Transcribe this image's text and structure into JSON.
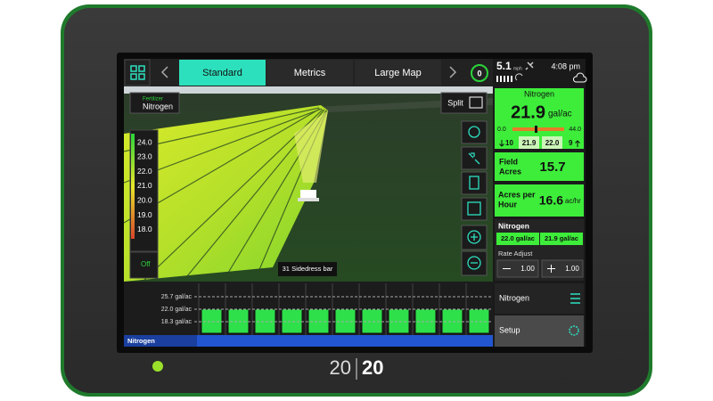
{
  "top_bar": {
    "tabs": [
      "Standard",
      "Metrics",
      "Large Map"
    ],
    "timer": "0",
    "speed": "5.1",
    "speed_unit": "mph",
    "time": "4:08 pm"
  },
  "map": {
    "product_button": {
      "label": "Fertilizer",
      "value": "Nitrogen"
    },
    "split": "Split",
    "legend": [
      "24.0",
      "23.0",
      "22.0",
      "21.0",
      "20.0",
      "19.0",
      "18.0"
    ],
    "off": "Off",
    "implement": "31 Sidedress bar"
  },
  "section_chart": {
    "levels": [
      "25.7 gal/ac",
      "22.0 gal/ac",
      "18.3 gal/ac"
    ],
    "product": "Nitrogen"
  },
  "panel": {
    "rate": {
      "title": "Nitrogen",
      "value": "21.9",
      "unit": "gal/ac",
      "min": "0.0",
      "max": "44.0",
      "row": [
        "10",
        "21.9",
        "22.0",
        "9"
      ]
    },
    "field_acres": {
      "label": [
        "Field",
        "Acres"
      ],
      "value": "15.7"
    },
    "acres_per_hour": {
      "label": [
        "Acres per",
        "Hour"
      ],
      "value": "16.6",
      "unit": "ac/hr"
    },
    "product": {
      "title": "Nitrogen",
      "target": "22.0 gal/ac",
      "actual": "21.9 gal/ac",
      "rate_adjust": "Rate Adjust",
      "minus": "1.00",
      "plus": "1.00"
    },
    "menu": "Nitrogen",
    "setup": "Setup"
  },
  "brand": {
    "left": "20",
    "right": "20"
  }
}
